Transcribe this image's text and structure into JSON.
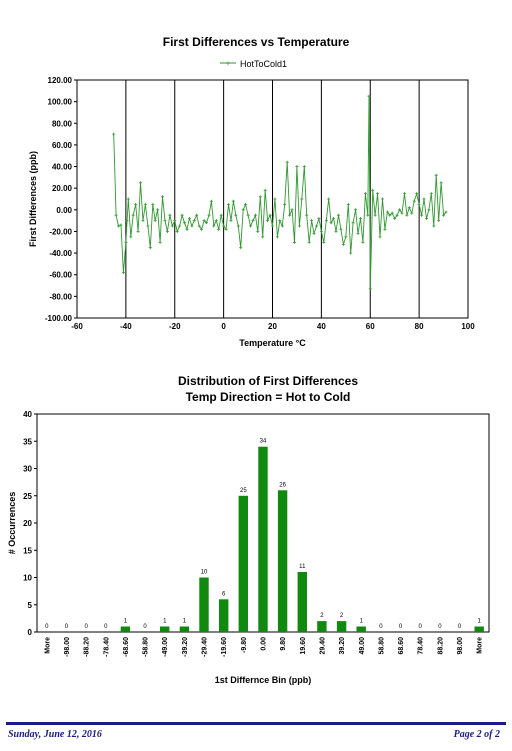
{
  "colors": {
    "series": "#2e9a2e",
    "bar": "#0f8a0f",
    "footer": "#1a1a8c",
    "grid": "#000000"
  },
  "chart_data": [
    {
      "type": "line",
      "title": "First Differences vs Temperature",
      "xlabel": "Temperature °C",
      "ylabel": "First Differences (ppb)",
      "xlim": [
        -60,
        100
      ],
      "ylim": [
        -100,
        120
      ],
      "x_ticks": [
        "-60",
        "-40",
        "-20",
        "0",
        "20",
        "40",
        "60",
        "80",
        "100"
      ],
      "y_ticks": [
        "120.00",
        "100.00",
        "80.00",
        "60.00",
        "40.00",
        "20.00",
        "0.00",
        "-20.00",
        "-40.00",
        "-60.00",
        "-80.00",
        "-100.00"
      ],
      "grid": "vertical",
      "legend": "top",
      "series": [
        {
          "name": "HotToCold1",
          "points": [
            [
              -45,
              70
            ],
            [
              -44,
              -5
            ],
            [
              -43,
              -15
            ],
            [
              -42,
              -14
            ],
            [
              -41,
              -58
            ],
            [
              -40,
              -30
            ],
            [
              -39.5,
              -10
            ],
            [
              -39,
              10
            ],
            [
              -38,
              -25
            ],
            [
              -37,
              -5
            ],
            [
              -36,
              5
            ],
            [
              -35,
              -20
            ],
            [
              -34,
              25
            ],
            [
              -33,
              -10
            ],
            [
              -32,
              5
            ],
            [
              -31,
              -15
            ],
            [
              -30,
              -35
            ],
            [
              -29,
              5
            ],
            [
              -28,
              -10
            ],
            [
              -27,
              0
            ],
            [
              -26,
              -30
            ],
            [
              -25,
              12
            ],
            [
              -24,
              -10
            ],
            [
              -23,
              -20
            ],
            [
              -22,
              -5
            ],
            [
              -21,
              -15
            ],
            [
              -20,
              -10
            ],
            [
              -19,
              -20
            ],
            [
              -18,
              -15
            ],
            [
              -17,
              -5
            ],
            [
              -16,
              -12
            ],
            [
              -15,
              -18
            ],
            [
              -14,
              -8
            ],
            [
              -13,
              -15
            ],
            [
              -12,
              -10
            ],
            [
              -11,
              -5
            ],
            [
              -10,
              -15
            ],
            [
              -9,
              -18
            ],
            [
              -8,
              -10
            ],
            [
              -7,
              -12
            ],
            [
              -6,
              -5
            ],
            [
              -5,
              8
            ],
            [
              -4,
              -15
            ],
            [
              -3,
              -10
            ],
            [
              -2,
              -18
            ],
            [
              -1,
              -5
            ],
            [
              0,
              -15
            ],
            [
              1,
              -18
            ],
            [
              2,
              5
            ],
            [
              3,
              -10
            ],
            [
              4,
              8
            ],
            [
              5,
              -5
            ],
            [
              6,
              -15
            ],
            [
              7,
              -35
            ],
            [
              8,
              0
            ],
            [
              9,
              5
            ],
            [
              10,
              -5
            ],
            [
              11,
              -15
            ],
            [
              12,
              -10
            ],
            [
              13,
              -5
            ],
            [
              14,
              -20
            ],
            [
              15,
              12
            ],
            [
              16,
              -25
            ],
            [
              17,
              18
            ],
            [
              18,
              -10
            ],
            [
              19,
              -5
            ],
            [
              20,
              -15
            ],
            [
              21,
              10
            ],
            [
              22,
              -25
            ],
            [
              23,
              -10
            ],
            [
              24,
              -15
            ],
            [
              25,
              5
            ],
            [
              26,
              44
            ],
            [
              27,
              -5
            ],
            [
              28,
              0
            ],
            [
              29,
              -30
            ],
            [
              30,
              40
            ],
            [
              31,
              -15
            ],
            [
              32,
              10
            ],
            [
              33,
              40
            ],
            [
              34,
              -5
            ],
            [
              35,
              -30
            ],
            [
              36,
              -10
            ],
            [
              37,
              -22
            ],
            [
              38,
              -15
            ],
            [
              39,
              -8
            ],
            [
              40,
              -20
            ],
            [
              41,
              -30
            ],
            [
              42,
              -10
            ],
            [
              43,
              10
            ],
            [
              44,
              -12
            ],
            [
              45,
              -8
            ],
            [
              46,
              -20
            ],
            [
              47,
              -5
            ],
            [
              48,
              -18
            ],
            [
              49,
              -32
            ],
            [
              50,
              -25
            ],
            [
              51,
              5
            ],
            [
              52,
              -40
            ],
            [
              53,
              -12
            ],
            [
              54,
              0
            ],
            [
              55,
              -22
            ],
            [
              56,
              -8
            ],
            [
              57,
              -30
            ],
            [
              58,
              15
            ],
            [
              59,
              -5
            ],
            [
              59.5,
              105
            ],
            [
              60,
              -73
            ],
            [
              61,
              18
            ],
            [
              62,
              -5
            ],
            [
              63,
              15
            ],
            [
              64,
              -25
            ],
            [
              65,
              10
            ],
            [
              66,
              -18
            ],
            [
              67,
              -2
            ],
            [
              68,
              -5
            ],
            [
              69,
              -3
            ],
            [
              70,
              -8
            ],
            [
              71,
              -5
            ],
            [
              72,
              0
            ],
            [
              73,
              -3
            ],
            [
              74,
              15
            ],
            [
              75,
              -5
            ],
            [
              76,
              2
            ],
            [
              77,
              -3
            ],
            [
              78,
              8
            ],
            [
              79,
              15
            ],
            [
              80,
              5
            ],
            [
              81,
              -5
            ],
            [
              82,
              10
            ],
            [
              83,
              -8
            ],
            [
              84,
              0
            ],
            [
              85,
              15
            ],
            [
              86,
              -15
            ],
            [
              87,
              32
            ],
            [
              88,
              -10
            ],
            [
              89,
              25
            ],
            [
              90,
              -5
            ],
            [
              91,
              -2
            ]
          ]
        }
      ]
    },
    {
      "type": "bar",
      "title": "Distribution of First Differences",
      "subtitle": "Temp Direction = Hot to Cold",
      "xlabel": "1st Differnce Bin (ppb)",
      "ylabel": "# Occurrences",
      "ylim": [
        0,
        40
      ],
      "y_ticks": [
        "40",
        "35",
        "30",
        "25",
        "20",
        "15",
        "10",
        "5",
        "0"
      ],
      "categories": [
        "More",
        "-98.00",
        "-88.20",
        "-78.40",
        "-68.60",
        "-58.80",
        "-49.00",
        "-39.20",
        "-29.40",
        "-19.60",
        "-9.80",
        "0.00",
        "9.80",
        "19.60",
        "29.40",
        "39.20",
        "49.00",
        "58.80",
        "68.60",
        "78.40",
        "88.20",
        "98.00",
        "More"
      ],
      "values": [
        0,
        0,
        0,
        0,
        1,
        0,
        1,
        1,
        10,
        6,
        25,
        34,
        26,
        11,
        2,
        2,
        1,
        0,
        0,
        0,
        0,
        0,
        1
      ],
      "data_labels": [
        "0",
        "0",
        "0",
        "0",
        "1",
        "0",
        "1",
        "1",
        "10",
        "6",
        "25",
        "34",
        "26",
        "11",
        "2",
        "2",
        "1",
        "0",
        "0",
        "0",
        "0",
        "0",
        "1"
      ]
    }
  ],
  "footer": {
    "date": "Sunday, June 12, 2016",
    "page": "Page 2 of 2"
  }
}
